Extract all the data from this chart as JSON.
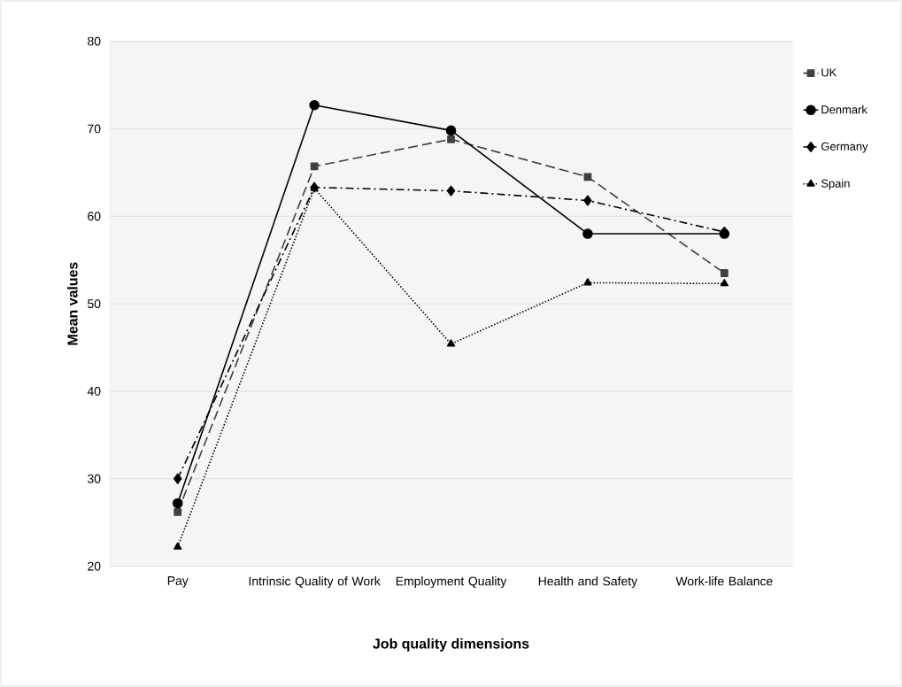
{
  "chart_data": {
    "type": "line",
    "xlabel": "Job quality dimensions",
    "ylabel": "Mean values",
    "categories": [
      "Pay",
      "Intrinsic Quality of Work",
      "Employment Quality",
      "Health and Safety",
      "Work-life Balance"
    ],
    "series": [
      {
        "name": "UK",
        "color": "#404040",
        "marker": "square",
        "line_style": "dashed",
        "values": [
          26.2,
          65.7,
          68.8,
          64.5,
          53.5
        ]
      },
      {
        "name": "Denmark",
        "color": "#000000",
        "marker": "circle",
        "line_style": "solid",
        "values": [
          27.2,
          72.7,
          69.8,
          58.0,
          58.0
        ]
      },
      {
        "name": "Germany",
        "color": "#000000",
        "marker": "diamond",
        "line_style": "dashdot",
        "values": [
          30.0,
          63.3,
          62.9,
          61.8,
          58.2
        ]
      },
      {
        "name": "Spain",
        "color": "#000000",
        "marker": "triangle",
        "line_style": "dotted",
        "values": [
          22.2,
          63.2,
          45.4,
          52.4,
          52.3
        ]
      }
    ],
    "ylim": [
      20,
      80
    ],
    "yticks": [
      20,
      30,
      40,
      50,
      60,
      70,
      80
    ],
    "grid": "y",
    "legend": "top right"
  }
}
